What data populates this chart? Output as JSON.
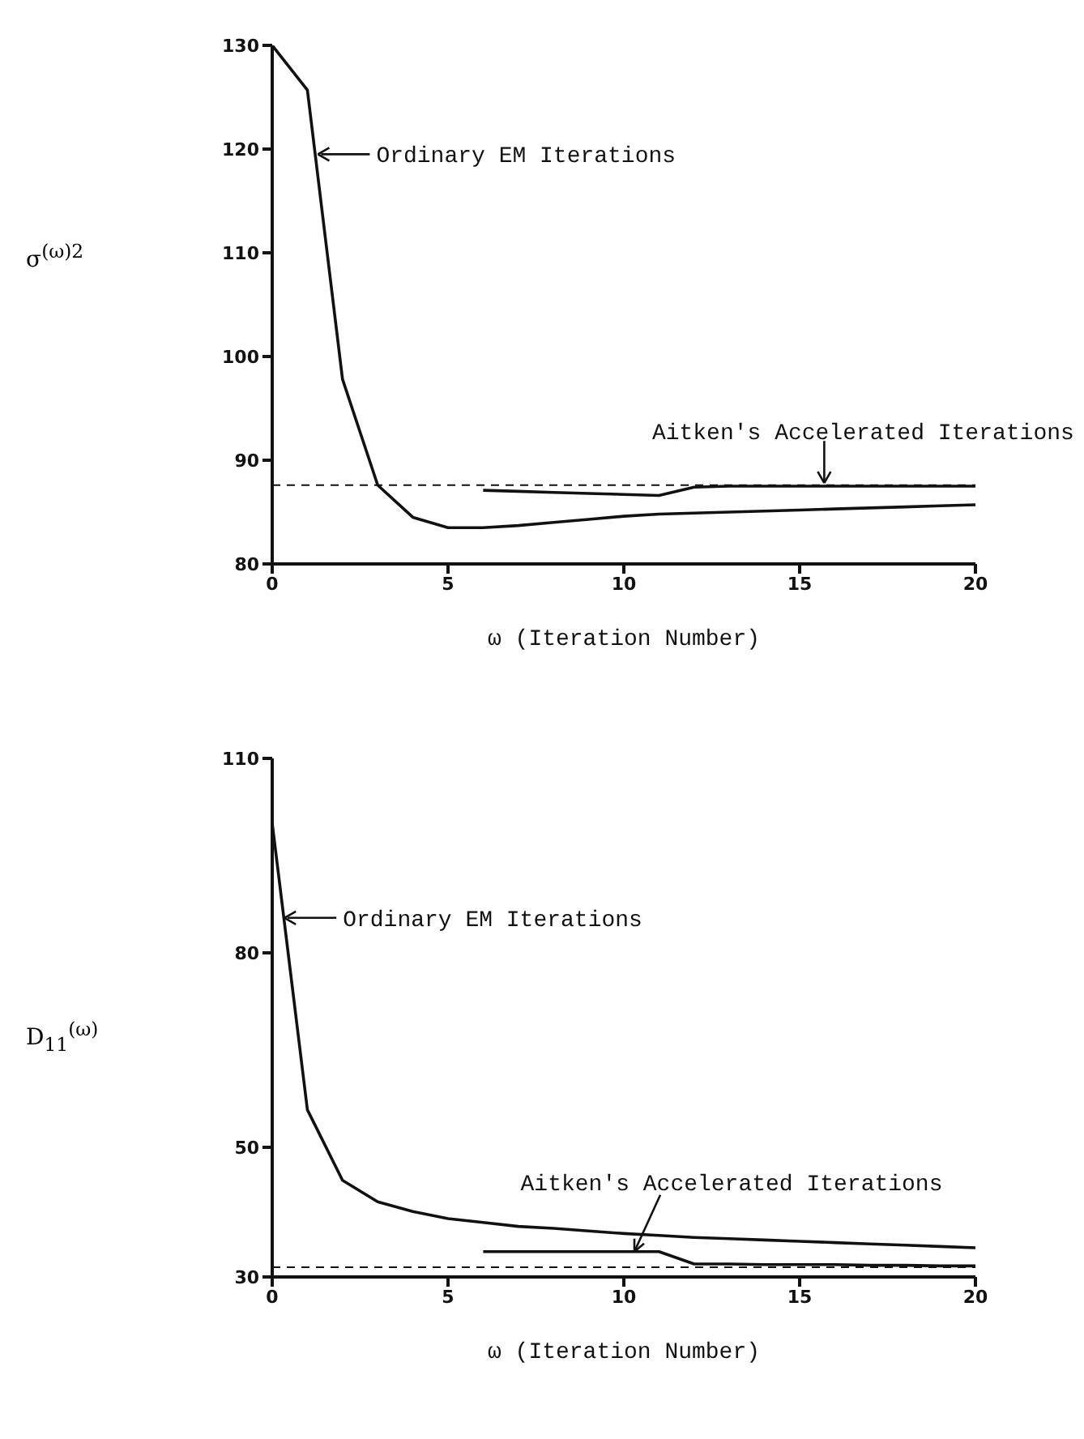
{
  "chart_data": [
    {
      "type": "line",
      "x": [
        0,
        1,
        2,
        3,
        4,
        5,
        6,
        7,
        8,
        9,
        10,
        11,
        12,
        13,
        14,
        15,
        16,
        17,
        18,
        19,
        20
      ],
      "series": [
        {
          "color": "#111111",
          "values": [
            130,
            125.7,
            97.8,
            87.6,
            84.5,
            83.5,
            83.5,
            83.7,
            84.0,
            84.3,
            84.6,
            84.8,
            84.9,
            85.0,
            85.1,
            85.2,
            85.3,
            85.4,
            85.5,
            85.6,
            85.7
          ]
        },
        {
          "color": "#111111",
          "x": [
            6,
            7,
            8,
            9,
            10,
            11,
            12,
            13,
            14,
            15,
            16,
            17,
            18,
            19,
            20
          ],
          "values": [
            87.1,
            87.0,
            86.9,
            86.8,
            86.7,
            86.6,
            87.4,
            87.5,
            87.5,
            87.5,
            87.5,
            87.5,
            87.5,
            87.5,
            87.5
          ]
        }
      ],
      "xlim": [
        0,
        20
      ],
      "xticks": [
        0,
        5,
        10,
        15,
        20
      ],
      "ylim": [
        80,
        130
      ],
      "yticks": [
        80,
        90,
        100,
        110,
        120,
        130
      ],
      "xlabel": "ω (Iteration Number)",
      "ylabel": "σ$^{(ω)2}$",
      "grid": false,
      "ref_lines": [
        {
          "axis": "y",
          "value": 87.6,
          "color": "#111111",
          "line_style": "dashed"
        }
      ],
      "annotations": [
        {
          "text": "Ordinary EM Iterations",
          "x": 1.3,
          "y": 119.5
        },
        {
          "text": "Aitken's Accelerated Iterations",
          "x": 15.7,
          "y": 87.8
        }
      ]
    },
    {
      "type": "line",
      "x": [
        0,
        1,
        2,
        3,
        4,
        5,
        6,
        7,
        8,
        9,
        10,
        11,
        12,
        13,
        14,
        15,
        16,
        17,
        18,
        19,
        20
      ],
      "series": [
        {
          "color": "#111111",
          "values": [
            100,
            55.8,
            44.9,
            41.6,
            40.1,
            39.0,
            38.4,
            37.8,
            37.5,
            37.1,
            36.7,
            36.4,
            36.1,
            35.9,
            35.7,
            35.5,
            35.3,
            35.1,
            34.9,
            34.7,
            34.5
          ]
        },
        {
          "color": "#111111",
          "x": [
            6,
            7,
            8,
            9,
            10,
            11,
            12,
            13,
            14,
            15,
            16,
            17,
            18,
            19,
            20
          ],
          "values": [
            33.9,
            33.9,
            33.9,
            33.9,
            33.9,
            33.9,
            32.0,
            32.0,
            31.9,
            31.9,
            31.9,
            31.8,
            31.8,
            31.7,
            31.7
          ]
        }
      ],
      "xlim": [
        0,
        20
      ],
      "xticks": [
        0,
        5,
        10,
        15,
        20
      ],
      "ylim": [
        30,
        110
      ],
      "yticks": [
        30,
        50,
        80,
        110
      ],
      "xlabel": "ω (Iteration Number)",
      "ylabel": "D$_{11}$$^{(ω)}$",
      "grid": false,
      "ref_lines": [
        {
          "axis": "y",
          "value": 31.5,
          "color": "#111111",
          "line_style": "dashed"
        }
      ],
      "annotations": [
        {
          "text": "Ordinary EM Iterations",
          "x": 0.35,
          "y": 85.4
        },
        {
          "text": "Aitken's Accelerated Iterations",
          "x": 10.3,
          "y": 33.9
        }
      ]
    }
  ]
}
